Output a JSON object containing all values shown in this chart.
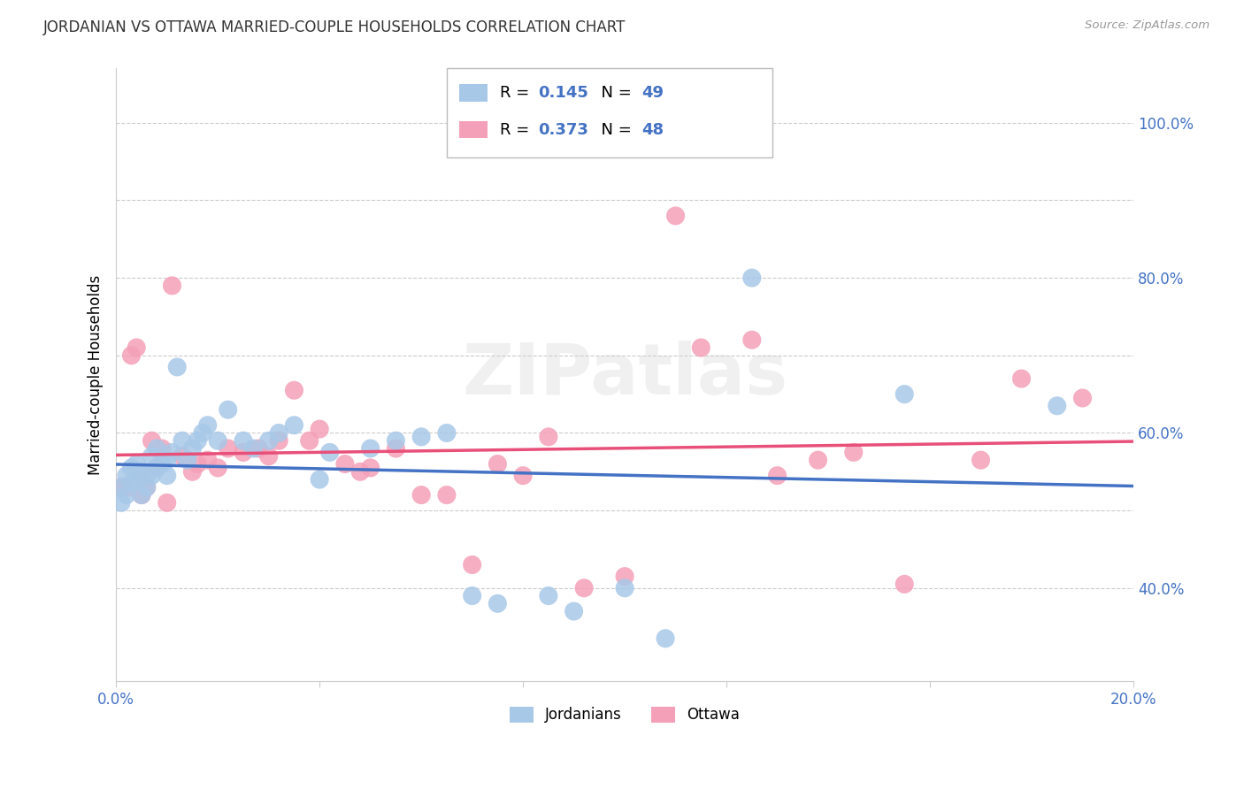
{
  "title": "JORDANIAN VS OTTAWA MARRIED-COUPLE HOUSEHOLDS CORRELATION CHART",
  "source": "Source: ZipAtlas.com",
  "ylabel_label": "Married-couple Households",
  "xlim": [
    0.0,
    0.2
  ],
  "ylim": [
    0.28,
    1.07
  ],
  "jordanian_R": 0.145,
  "jordanian_N": 49,
  "ottawa_R": 0.373,
  "ottawa_N": 48,
  "jordanian_color": "#a8c8e8",
  "ottawa_color": "#f4a0b8",
  "jordanian_line_color": "#4472c4",
  "ottawa_line_color": "#e8507a",
  "label_color": "#4472c4",
  "watermark": "ZIPatlas",
  "legend_jordanians": "Jordanians",
  "legend_ottawa": "Ottawa",
  "jordanian_x": [
    0.001,
    0.001,
    0.002,
    0.002,
    0.003,
    0.003,
    0.004,
    0.004,
    0.005,
    0.005,
    0.006,
    0.006,
    0.007,
    0.007,
    0.008,
    0.008,
    0.009,
    0.01,
    0.01,
    0.011,
    0.012,
    0.013,
    0.014,
    0.015,
    0.016,
    0.017,
    0.018,
    0.02,
    0.022,
    0.025,
    0.027,
    0.03,
    0.032,
    0.035,
    0.04,
    0.042,
    0.05,
    0.055,
    0.06,
    0.065,
    0.07,
    0.075,
    0.085,
    0.09,
    0.1,
    0.108,
    0.125,
    0.155,
    0.185
  ],
  "jordanian_y": [
    0.53,
    0.51,
    0.545,
    0.52,
    0.555,
    0.535,
    0.56,
    0.54,
    0.52,
    0.55,
    0.545,
    0.53,
    0.57,
    0.545,
    0.58,
    0.555,
    0.56,
    0.565,
    0.545,
    0.575,
    0.685,
    0.59,
    0.565,
    0.58,
    0.59,
    0.6,
    0.61,
    0.59,
    0.63,
    0.59,
    0.58,
    0.59,
    0.6,
    0.61,
    0.54,
    0.575,
    0.58,
    0.59,
    0.595,
    0.6,
    0.39,
    0.38,
    0.39,
    0.37,
    0.4,
    0.335,
    0.8,
    0.65,
    0.635
  ],
  "ottawa_x": [
    0.001,
    0.002,
    0.003,
    0.003,
    0.004,
    0.005,
    0.005,
    0.006,
    0.007,
    0.008,
    0.009,
    0.01,
    0.011,
    0.013,
    0.015,
    0.016,
    0.018,
    0.02,
    0.022,
    0.025,
    0.028,
    0.03,
    0.032,
    0.035,
    0.038,
    0.04,
    0.045,
    0.048,
    0.05,
    0.055,
    0.06,
    0.065,
    0.07,
    0.075,
    0.08,
    0.085,
    0.092,
    0.1,
    0.11,
    0.115,
    0.125,
    0.13,
    0.138,
    0.145,
    0.155,
    0.17,
    0.178,
    0.19
  ],
  "ottawa_y": [
    0.53,
    0.53,
    0.7,
    0.53,
    0.71,
    0.54,
    0.52,
    0.53,
    0.59,
    0.555,
    0.58,
    0.51,
    0.79,
    0.57,
    0.55,
    0.56,
    0.565,
    0.555,
    0.58,
    0.575,
    0.58,
    0.57,
    0.59,
    0.655,
    0.59,
    0.605,
    0.56,
    0.55,
    0.555,
    0.58,
    0.52,
    0.52,
    0.43,
    0.56,
    0.545,
    0.595,
    0.4,
    0.415,
    0.88,
    0.71,
    0.72,
    0.545,
    0.565,
    0.575,
    0.405,
    0.565,
    0.67,
    0.645
  ],
  "bg_color": "#ffffff",
  "grid_color": "#cccccc",
  "spine_color": "#cccccc"
}
